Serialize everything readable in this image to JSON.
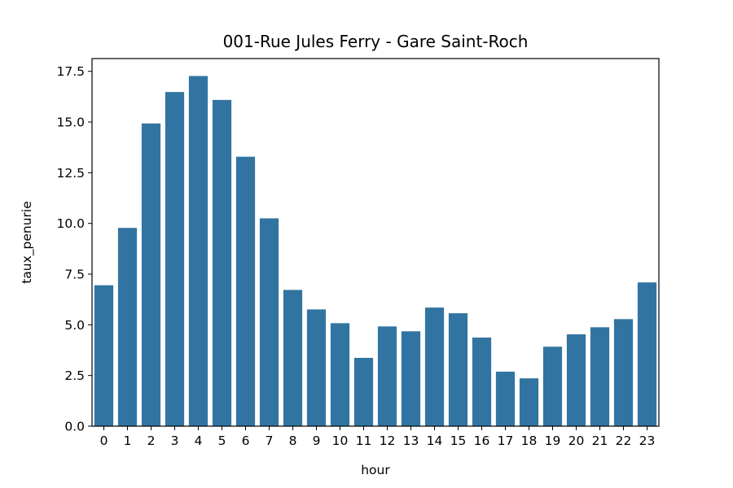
{
  "chart_data": {
    "type": "bar",
    "title": "001-Rue Jules Ferry - Gare Saint-Roch",
    "xlabel": "hour",
    "ylabel": "taux_penurie",
    "categories": [
      "0",
      "1",
      "2",
      "3",
      "4",
      "5",
      "6",
      "7",
      "8",
      "9",
      "10",
      "11",
      "12",
      "13",
      "14",
      "15",
      "16",
      "17",
      "18",
      "19",
      "20",
      "21",
      "22",
      "23"
    ],
    "values": [
      6.95,
      9.78,
      14.93,
      16.48,
      17.27,
      16.09,
      13.29,
      10.25,
      6.72,
      5.76,
      5.08,
      3.37,
      4.92,
      4.68,
      5.85,
      5.57,
      4.37,
      2.69,
      2.36,
      3.92,
      4.53,
      4.88,
      5.28,
      7.09
    ],
    "ylim": [
      0,
      18.13
    ],
    "yticks": [
      "0.0",
      "2.5",
      "5.0",
      "7.5",
      "10.0",
      "12.5",
      "15.0",
      "17.5"
    ],
    "bar_color": "#3274a1",
    "grid": false
  }
}
